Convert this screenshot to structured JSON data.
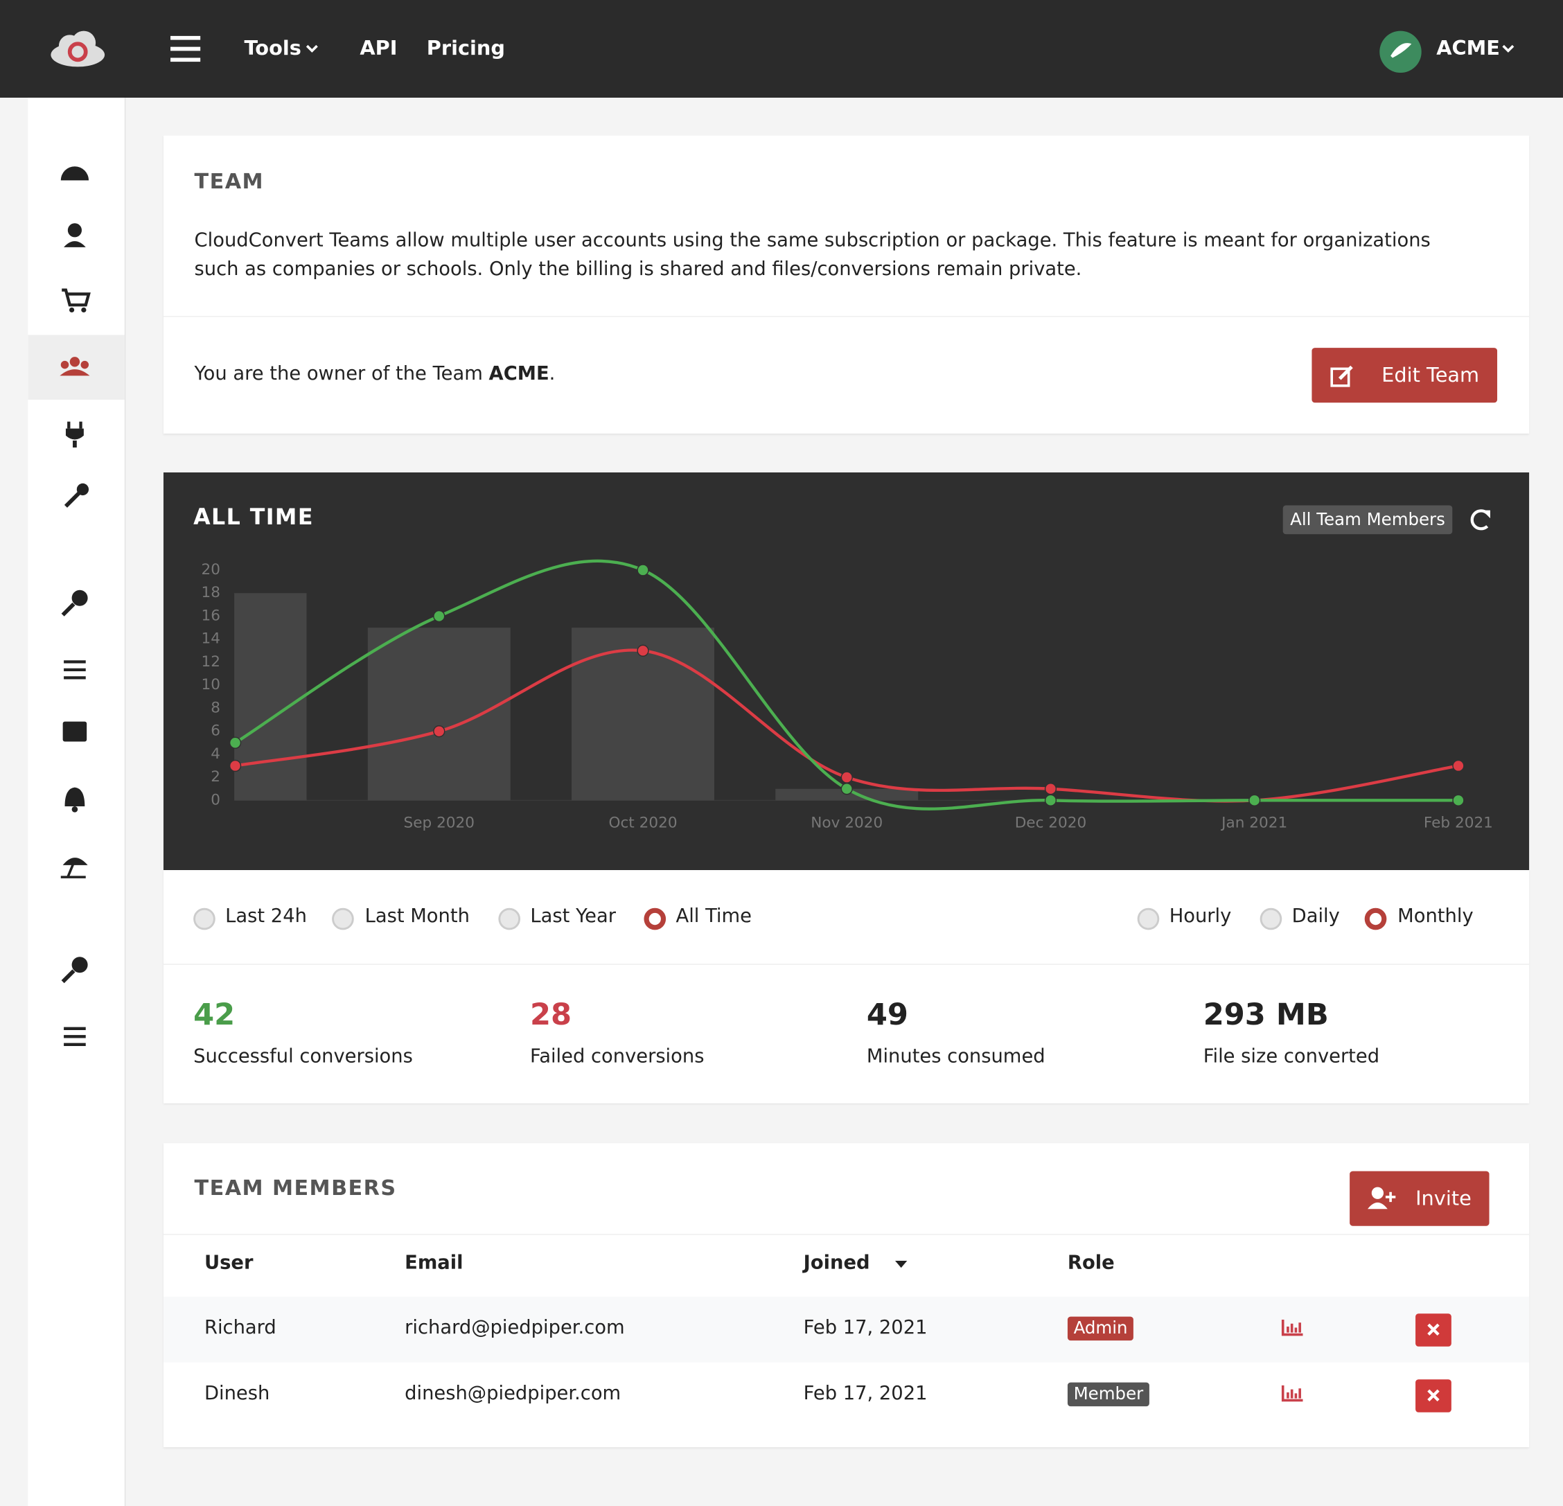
{
  "nav": {
    "items": [
      "Tools",
      "API",
      "Pricing"
    ],
    "account": "ACME"
  },
  "team": {
    "title": "TEAM",
    "description": "CloudConvert Teams allow multiple user accounts using the same subscription or package. This feature is meant for organizations such as companies or schools. Only the billing is shared and files/conversions remain private.",
    "owner_text": "You are the owner of the Team",
    "owner_team": "ACME",
    "owner_suffix": ".",
    "edit_button": "Edit Team"
  },
  "stats_filter": "All Team Members",
  "chart_data": {
    "type": "line",
    "title": "ALL TIME",
    "categories": [
      null,
      "Sep 2020",
      "Oct 2020",
      "Nov 2020",
      "Dec 2020",
      "Jan 2021",
      "Feb 2021"
    ],
    "series": [
      {
        "type": "bar",
        "color": "#454545",
        "values": [
          18,
          15,
          15,
          1,
          0,
          0,
          0
        ]
      },
      {
        "type": "line",
        "color": "#dc3c45",
        "values": [
          3,
          6,
          13,
          2,
          1,
          0,
          3
        ]
      },
      {
        "type": "line",
        "color": "#4caf50",
        "values": [
          5,
          16,
          20,
          1,
          0,
          0,
          0
        ]
      }
    ],
    "ylim": [
      0,
      20
    ],
    "yticks": [
      0,
      2,
      4,
      6,
      8,
      10,
      12,
      14,
      16,
      18,
      20
    ],
    "grid": false
  },
  "ranges": {
    "periods": [
      "Last 24h",
      "Last Month",
      "Last Year",
      "All Time"
    ],
    "selected_period": 3,
    "granularity": [
      "Hourly",
      "Daily",
      "Monthly"
    ],
    "selected_granularity": 2
  },
  "stats": [
    {
      "value": "42",
      "label": "Successful conversions",
      "color": "#4a9d4a"
    },
    {
      "value": "28",
      "label": "Failed conversions",
      "color": "#c9404a"
    },
    {
      "value": "49",
      "label": "Minutes consumed",
      "color": "#222222"
    },
    {
      "value": "293 MB",
      "label": "File size converted",
      "color": "#222222"
    }
  ],
  "members": {
    "title": "TEAM MEMBERS",
    "invite_button": "Invite",
    "headers": [
      "User",
      "Email",
      "Joined",
      "Role"
    ],
    "rows": [
      [
        "Richard",
        "richard@piedpiper.com",
        "Feb 17, 2021",
        "Admin"
      ],
      [
        "Dinesh",
        "dinesh@piedpiper.com",
        "Feb 17, 2021",
        "Member"
      ]
    ]
  }
}
